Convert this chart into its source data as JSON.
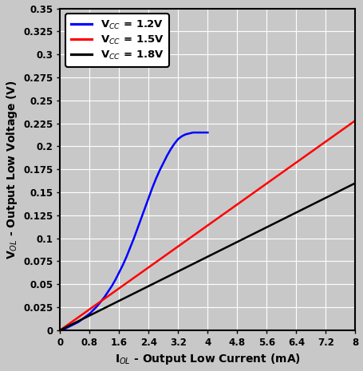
{
  "title": "",
  "xlabel": "I$_{OL}$ - Output Low Current (mA)",
  "ylabel": "V$_{OL}$ - Output Low Voltage (V)",
  "xlim": [
    0,
    8
  ],
  "ylim": [
    0,
    0.35
  ],
  "xticks": [
    0,
    0.8,
    1.6,
    2.4,
    3.2,
    4.0,
    4.8,
    5.6,
    6.4,
    7.2,
    8.0
  ],
  "yticks": [
    0,
    0.025,
    0.05,
    0.075,
    0.1,
    0.125,
    0.15,
    0.175,
    0.2,
    0.225,
    0.25,
    0.275,
    0.3,
    0.325,
    0.35
  ],
  "legend": [
    {
      "label": "V$_{CC}$ = 1.2V",
      "color": "#0000FF"
    },
    {
      "label": "V$_{CC}$ = 1.5V",
      "color": "#FF0000"
    },
    {
      "label": "V$_{CC}$ = 1.8V",
      "color": "#000000"
    }
  ],
  "background_color": "#C8C8C8",
  "grid_color": "#FFFFFF",
  "line_width": 1.8,
  "vcc_1p2": {
    "x": [
      0,
      0.1,
      0.2,
      0.3,
      0.4,
      0.5,
      0.6,
      0.7,
      0.8,
      0.9,
      1.0,
      1.1,
      1.2,
      1.3,
      1.4,
      1.5,
      1.6,
      1.7,
      1.8,
      1.9,
      2.0,
      2.1,
      2.2,
      2.3,
      2.4,
      2.5,
      2.6,
      2.7,
      2.8,
      2.9,
      3.0,
      3.1,
      3.2,
      3.3,
      3.4,
      3.5,
      3.6,
      3.7,
      3.8,
      3.9,
      4.0
    ],
    "y": [
      0.0,
      0.001,
      0.003,
      0.005,
      0.007,
      0.009,
      0.012,
      0.015,
      0.018,
      0.022,
      0.026,
      0.031,
      0.036,
      0.042,
      0.048,
      0.055,
      0.063,
      0.071,
      0.08,
      0.09,
      0.1,
      0.111,
      0.122,
      0.133,
      0.144,
      0.155,
      0.165,
      0.174,
      0.182,
      0.19,
      0.197,
      0.203,
      0.208,
      0.211,
      0.213,
      0.214,
      0.215,
      0.215,
      0.215,
      0.215,
      0.215
    ]
  },
  "vcc_1p5": {
    "x": [
      0,
      8.0
    ],
    "y": [
      0,
      0.228
    ]
  },
  "vcc_1p8": {
    "x": [
      0,
      8.0
    ],
    "y": [
      0,
      0.16
    ]
  }
}
